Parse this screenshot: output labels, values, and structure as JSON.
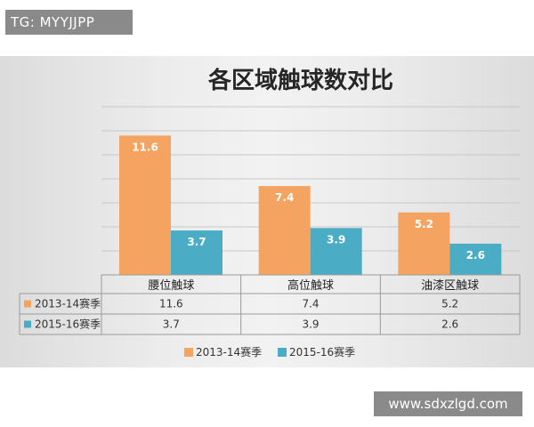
{
  "header_badge": "TG: MYYJJPP",
  "watermark": "www.sdxzlgd.com",
  "colors": {
    "series1": "#F4A460",
    "series2": "#4BACC6"
  },
  "chart_data": {
    "type": "bar",
    "title": "各区域触球数对比",
    "categories": [
      "腰位触球",
      "高位触球",
      "油漆区触球"
    ],
    "series": [
      {
        "name": "2013-14赛季",
        "values": [
          11.6,
          7.4,
          5.2
        ],
        "labels": [
          "11.6",
          "7.4",
          "5.2"
        ]
      },
      {
        "name": "2015-16赛季",
        "values": [
          3.7,
          3.9,
          2.6
        ],
        "labels": [
          "3.7",
          "3.9",
          "2.6"
        ]
      }
    ],
    "ylim": [
      0,
      14
    ],
    "grid": true,
    "data_table": true,
    "legend_position": "bottom"
  }
}
